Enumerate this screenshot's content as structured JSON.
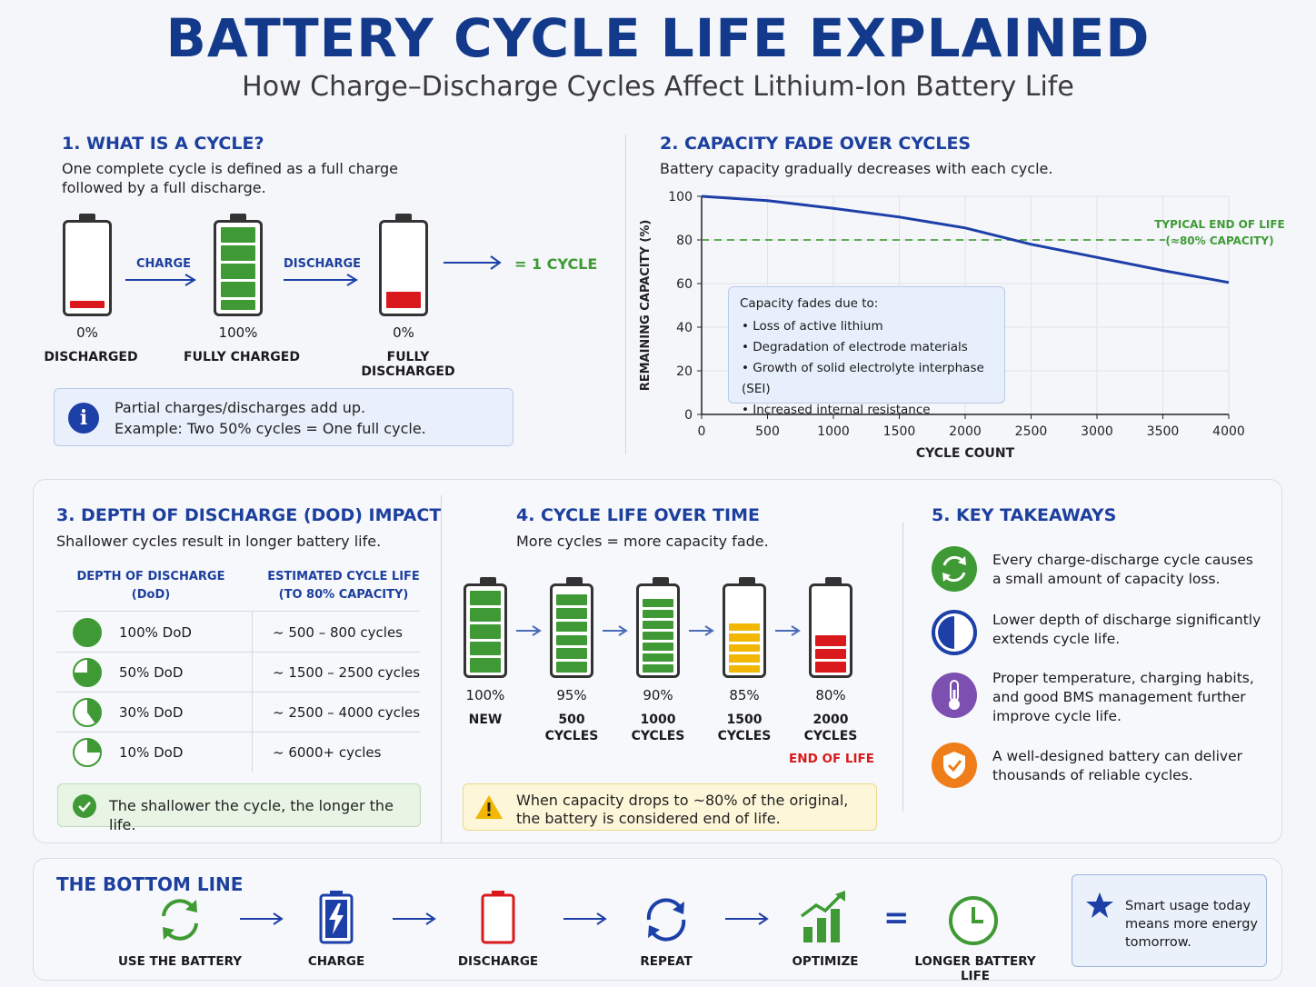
{
  "header": {
    "title": "BATTERY CYCLE LIFE EXPLAINED",
    "subtitle": "How Charge–Discharge Cycles Affect Lithium-Ion Battery Life"
  },
  "section1": {
    "heading": "1. WHAT IS A CYCLE?",
    "desc_line1": "One complete cycle is defined as a full charge",
    "desc_line2": "followed by a full discharge.",
    "batteries": [
      {
        "pct": "0%",
        "label": "DISCHARGED"
      },
      {
        "pct": "100%",
        "label": "FULLY CHARGED"
      },
      {
        "pct": "0%",
        "label": "FULLY DISCHARGED"
      }
    ],
    "charge_label": "CHARGE",
    "discharge_label": "DISCHARGE",
    "equals": "= 1 CYCLE",
    "info_line1": "Partial charges/discharges add up.",
    "info_line2": "Example: Two 50% cycles = One full cycle."
  },
  "section2": {
    "heading": "2. CAPACITY FADE OVER CYCLES",
    "desc": "Battery capacity gradually decreases with each cycle.",
    "end_of_life_line1": "TYPICAL END OF LIFE",
    "end_of_life_line2": "(≈80% CAPACITY)",
    "fade_title": "Capacity fades due to:",
    "fade_reasons": [
      "Loss of active lithium",
      "Degradation of electrode materials",
      "Growth of solid electrolyte interphase (SEI)",
      "Increased internal resistance"
    ]
  },
  "chart_data": {
    "type": "line",
    "title": "",
    "xlabel": "CYCLE COUNT",
    "ylabel": "REMAINING CAPACITY (%)",
    "xlim": [
      0,
      4000
    ],
    "ylim": [
      0,
      100
    ],
    "xticks": [
      0,
      500,
      1000,
      1500,
      2000,
      2500,
      3000,
      3500,
      4000
    ],
    "yticks": [
      0,
      20,
      40,
      60,
      80,
      100
    ],
    "grid": true,
    "series": [
      {
        "x": [
          0,
          500,
          1000,
          1500,
          2000,
          2500,
          3000,
          3500,
          4000
        ],
        "y": [
          100,
          98,
          94.5,
          90.5,
          85.5,
          78,
          72,
          66,
          60.5
        ],
        "color": "#1d3fa8"
      }
    ],
    "reference_line": {
      "y": 80,
      "color": "#4aa03a",
      "style": "dashed"
    }
  },
  "section3": {
    "heading": "3. DEPTH OF DISCHARGE (DOD) IMPACT",
    "desc": "Shallower cycles result in longer battery life.",
    "col1_line1": "DEPTH OF DISCHARGE",
    "col1_line2": "(DoD)",
    "col2_line1": "ESTIMATED CYCLE LIFE",
    "col2_line2": "(TO 80% CAPACITY)",
    "rows": [
      {
        "dod": "100% DoD",
        "life": "~ 500 – 800 cycles",
        "fraction": 1.0
      },
      {
        "dod": "50% DoD",
        "life": "~ 1500 – 2500 cycles",
        "fraction": 0.75
      },
      {
        "dod": "30% DoD",
        "life": "~ 2500 – 4000 cycles",
        "fraction": 0.4
      },
      {
        "dod": "10% DoD",
        "life": "~ 6000+ cycles",
        "fraction": 0.25
      }
    ],
    "note": "The shallower the cycle, the longer the life."
  },
  "section4": {
    "heading": "4. CYCLE LIFE OVER TIME",
    "desc": "More cycles = more capacity fade.",
    "stages": [
      {
        "pct": "100%",
        "line1": "NEW",
        "line2": "",
        "color": "#3f9a35",
        "cells": 5
      },
      {
        "pct": "95%",
        "line1": "500",
        "line2": "CYCLES",
        "color": "#3f9a35",
        "cells": 6
      },
      {
        "pct": "90%",
        "line1": "1000",
        "line2": "CYCLES",
        "color": "#3f9a35",
        "cells": 7
      },
      {
        "pct": "85%",
        "line1": "1500",
        "line2": "CYCLES",
        "color": "#f2b705",
        "cells": 5
      },
      {
        "pct": "80%",
        "line1": "2000",
        "line2": "CYCLES",
        "color": "#d9191c",
        "cells": 3
      }
    ],
    "end_of_life": "END OF LIFE",
    "warning_line1": "When capacity drops to ~80% of the original,",
    "warning_line2": "the battery is considered end of life."
  },
  "section5": {
    "heading": "5. KEY TAKEAWAYS",
    "items": [
      {
        "line1": "Every charge-discharge cycle causes",
        "line2": "a small amount of capacity loss.",
        "line3": "",
        "icon": "recycle-icon",
        "color": "#3f9a35"
      },
      {
        "line1": "Lower depth of discharge significantly",
        "line2": "extends cycle life.",
        "line3": "",
        "icon": "half-circle-icon",
        "color": "#1d3fa8"
      },
      {
        "line1": "Proper temperature, charging habits,",
        "line2": "and good BMS management further",
        "line3": "improve cycle life.",
        "icon": "thermometer-icon",
        "color": "#7d4fb0"
      },
      {
        "line1": "A well-designed battery can deliver",
        "line2": "thousands of reliable cycles.",
        "line3": "",
        "icon": "shield-check-icon",
        "color": "#ee7d1a"
      }
    ]
  },
  "bottom": {
    "heading": "THE BOTTOM LINE",
    "steps": [
      "USE THE BATTERY",
      "CHARGE",
      "DISCHARGE",
      "REPEAT",
      "OPTIMIZE",
      "LONGER BATTERY LIFE"
    ],
    "equals": "=",
    "tip_line1": "Smart usage today",
    "tip_line2": "means more energy",
    "tip_line3": "tomorrow."
  }
}
